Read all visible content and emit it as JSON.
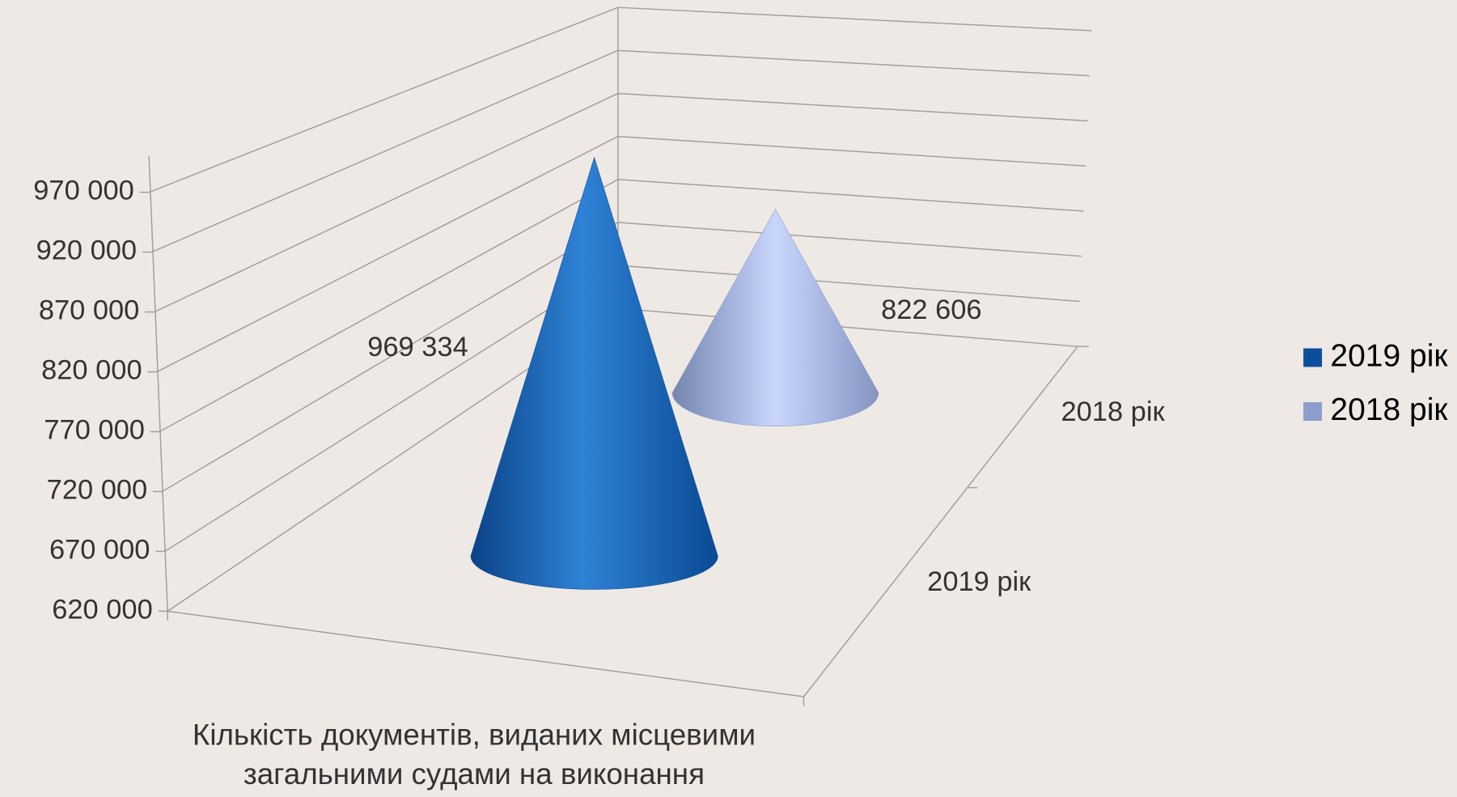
{
  "chart_data": {
    "type": "cone3d",
    "categories": [
      "Кількість документів, виданих місцевими загальними судами на виконання"
    ],
    "series": [
      {
        "name": "2019 рік",
        "color": "#0b4f9c",
        "values": [
          969334
        ],
        "value_labels": [
          "969 334"
        ]
      },
      {
        "name": "2018 рік",
        "color": "#8d9dcc",
        "values": [
          822606
        ],
        "value_labels": [
          "822 606"
        ]
      }
    ],
    "ylim": [
      620000,
      970000
    ],
    "yticks": [
      {
        "value": 620000,
        "label": "620 000"
      },
      {
        "value": 670000,
        "label": "670 000"
      },
      {
        "value": 720000,
        "label": "720 000"
      },
      {
        "value": 770000,
        "label": "770 000"
      },
      {
        "value": 820000,
        "label": "820 000"
      },
      {
        "value": 870000,
        "label": "870 000"
      },
      {
        "value": 920000,
        "label": "920 000"
      },
      {
        "value": 970000,
        "label": "970 000"
      }
    ],
    "grid": true,
    "legend": "right"
  }
}
